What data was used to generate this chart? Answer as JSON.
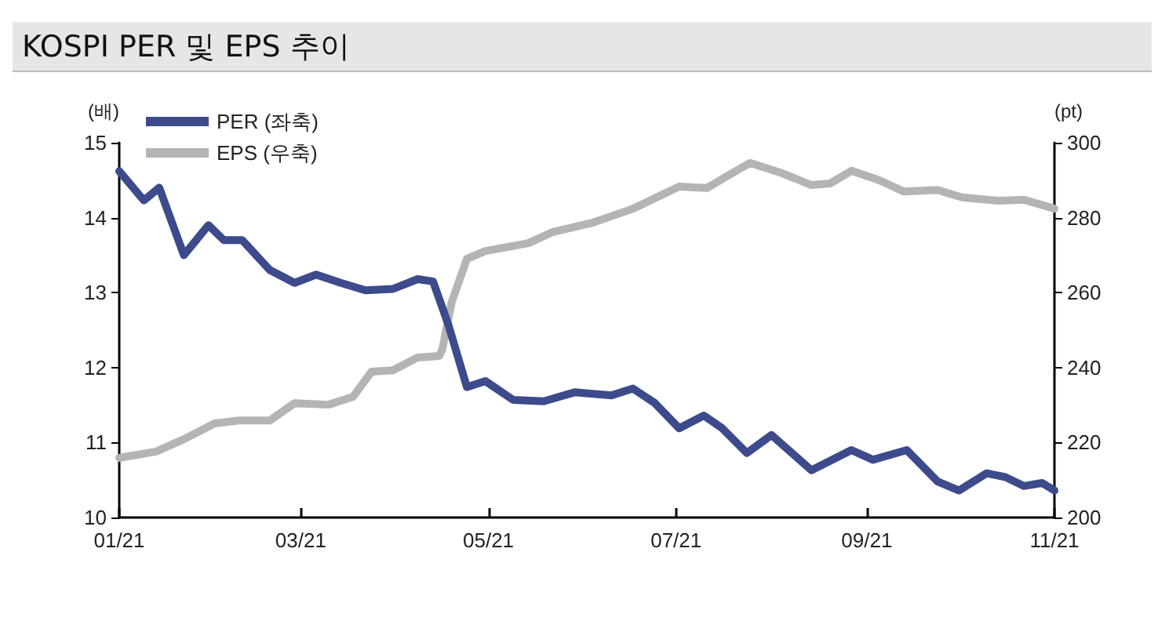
{
  "chart_data": {
    "type": "line",
    "title": "KOSPI PER 및 EPS 추이",
    "ylabel": "(배)",
    "y2label": "(pt)",
    "xlim": [
      "2021-01-01",
      "2021-11-01"
    ],
    "xticks": [
      {
        "value": "2021-01-01",
        "label": "01/21"
      },
      {
        "value": "2021-03-01",
        "label": "03/21"
      },
      {
        "value": "2021-05-01",
        "label": "05/21"
      },
      {
        "value": "2021-07-01",
        "label": "07/21"
      },
      {
        "value": "2021-09-01",
        "label": "09/21"
      },
      {
        "value": "2021-11-01",
        "label": "11/21"
      }
    ],
    "ylim": [
      10,
      15
    ],
    "yticks": [
      10,
      11,
      12,
      13,
      14,
      15
    ],
    "y2lim": [
      200,
      300
    ],
    "y2ticks": [
      200,
      220,
      240,
      260,
      280,
      300
    ],
    "legend": "top left",
    "grid": false,
    "marker": "none",
    "line_style": "solid",
    "series": [
      {
        "name": "PER (좌축)",
        "color": "#3d4b8c",
        "x": [
          "2021-01-01",
          "2021-01-09",
          "2021-01-14",
          "2021-01-22",
          "2021-01-30",
          "2021-02-04",
          "2021-02-10",
          "2021-02-19",
          "2021-02-27",
          "2021-03-06",
          "2021-03-14",
          "2021-03-22",
          "2021-03-31",
          "2021-04-08",
          "2021-04-13",
          "2021-04-18",
          "2021-04-24",
          "2021-04-30",
          "2021-05-09",
          "2021-05-19",
          "2021-05-29",
          "2021-06-10",
          "2021-06-17",
          "2021-06-24",
          "2021-07-02",
          "2021-07-10",
          "2021-07-16",
          "2021-07-24",
          "2021-08-01",
          "2021-08-14",
          "2021-08-27",
          "2021-09-03",
          "2021-09-14",
          "2021-09-24",
          "2021-10-01",
          "2021-10-10",
          "2021-10-16",
          "2021-10-22",
          "2021-10-28",
          "2021-11-01"
        ],
        "values": [
          14.62,
          14.23,
          14.4,
          13.5,
          13.9,
          13.7,
          13.7,
          13.3,
          13.13,
          13.24,
          13.13,
          13.03,
          13.05,
          13.18,
          13.15,
          12.57,
          11.74,
          11.82,
          11.57,
          11.55,
          11.67,
          11.63,
          11.72,
          11.53,
          11.19,
          11.36,
          11.19,
          10.86,
          11.1,
          10.63,
          10.9,
          10.77,
          10.9,
          10.48,
          10.36,
          10.59,
          10.54,
          10.42,
          10.46,
          10.36
        ]
      },
      {
        "name": "EPS (우축)",
        "color": "#b4b4b4",
        "axis": "y2",
        "x": [
          "2021-01-01",
          "2021-01-13",
          "2021-01-22",
          "2021-02-01",
          "2021-02-09",
          "2021-02-19",
          "2021-02-27",
          "2021-03-10",
          "2021-03-18",
          "2021-03-24",
          "2021-03-31",
          "2021-04-08",
          "2021-04-15",
          "2021-04-16",
          "2021-04-19",
          "2021-04-24",
          "2021-04-30",
          "2021-05-14",
          "2021-05-22",
          "2021-06-04",
          "2021-06-17",
          "2021-07-02",
          "2021-07-11",
          "2021-07-17",
          "2021-07-25",
          "2021-08-04",
          "2021-08-14",
          "2021-08-20",
          "2021-08-27",
          "2021-09-05",
          "2021-09-13",
          "2021-09-24",
          "2021-10-02",
          "2021-10-14",
          "2021-10-22",
          "2021-11-01"
        ],
        "values": [
          215.9,
          217.6,
          220.9,
          225.1,
          225.9,
          225.9,
          230.5,
          230.1,
          232.2,
          238.9,
          239.3,
          242.7,
          243.1,
          244.8,
          257.3,
          269,
          271.1,
          273.2,
          276.2,
          278.7,
          282.4,
          288.3,
          287.9,
          290.8,
          294.6,
          292,
          288.7,
          289.1,
          292.5,
          290,
          287,
          287.4,
          285.4,
          284.5,
          284.8,
          282.4
        ]
      }
    ]
  }
}
